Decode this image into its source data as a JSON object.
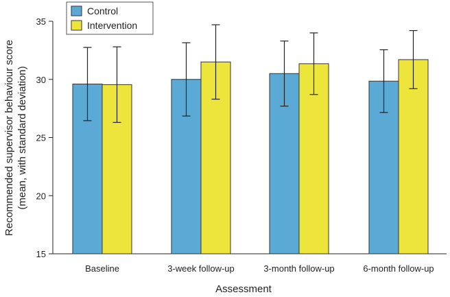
{
  "chart_data": {
    "type": "bar",
    "title": "",
    "xlabel": "Assessment",
    "ylabel_line1": "Recommended supervisor behaviour score",
    "ylabel_line2": "(mean, with standard deviation)",
    "ylim": [
      15,
      35
    ],
    "yticks": [
      15,
      20,
      25,
      30,
      35
    ],
    "categories": [
      "Baseline",
      "3-week follow-up",
      "3-month follow-up",
      "6-month follow-up"
    ],
    "series": [
      {
        "name": "Control",
        "color": "#5aaad5",
        "values": [
          29.6,
          30.0,
          30.5,
          29.85
        ],
        "sd": [
          3.15,
          3.15,
          2.8,
          2.7
        ]
      },
      {
        "name": "Intervention",
        "color": "#ede53c",
        "values": [
          29.55,
          31.5,
          31.35,
          31.7
        ],
        "sd": [
          3.25,
          3.2,
          2.65,
          2.5
        ]
      }
    ],
    "grid": false,
    "legend_position": "top-left"
  }
}
